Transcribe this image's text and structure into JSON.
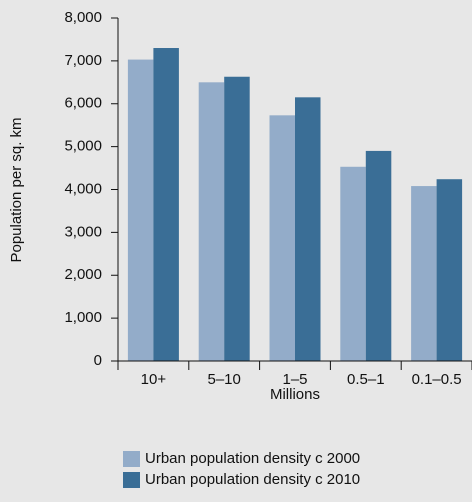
{
  "chart_data": {
    "type": "bar",
    "y_label": "Population per sq. km",
    "x_label": "Millions",
    "categories": [
      "10+",
      "5–10",
      "1–5",
      "0.5–1",
      "0.1–0.5"
    ],
    "series": [
      {
        "name": "Urban population density c 2000",
        "color": "#93acc9",
        "values": [
          7030,
          6500,
          5730,
          4530,
          4080
        ]
      },
      {
        "name": "Urban population density c 2010",
        "color": "#3a6e96",
        "values": [
          7300,
          6630,
          6150,
          4900,
          4240
        ]
      }
    ],
    "ylim": [
      0,
      8000
    ],
    "yticks": [
      0,
      {
        "value": 1000,
        "label": "1,000"
      },
      {
        "value": 2000,
        "label": "2,000"
      },
      {
        "value": 3000,
        "label": "3,000"
      },
      {
        "value": 4000,
        "label": "4,000"
      },
      {
        "value": 5000,
        "label": "5,000"
      },
      {
        "value": 6000,
        "label": "6,000"
      },
      {
        "value": 7000,
        "label": "7,000"
      },
      {
        "value": 8000,
        "label": "8,000"
      }
    ],
    "grid": false
  }
}
